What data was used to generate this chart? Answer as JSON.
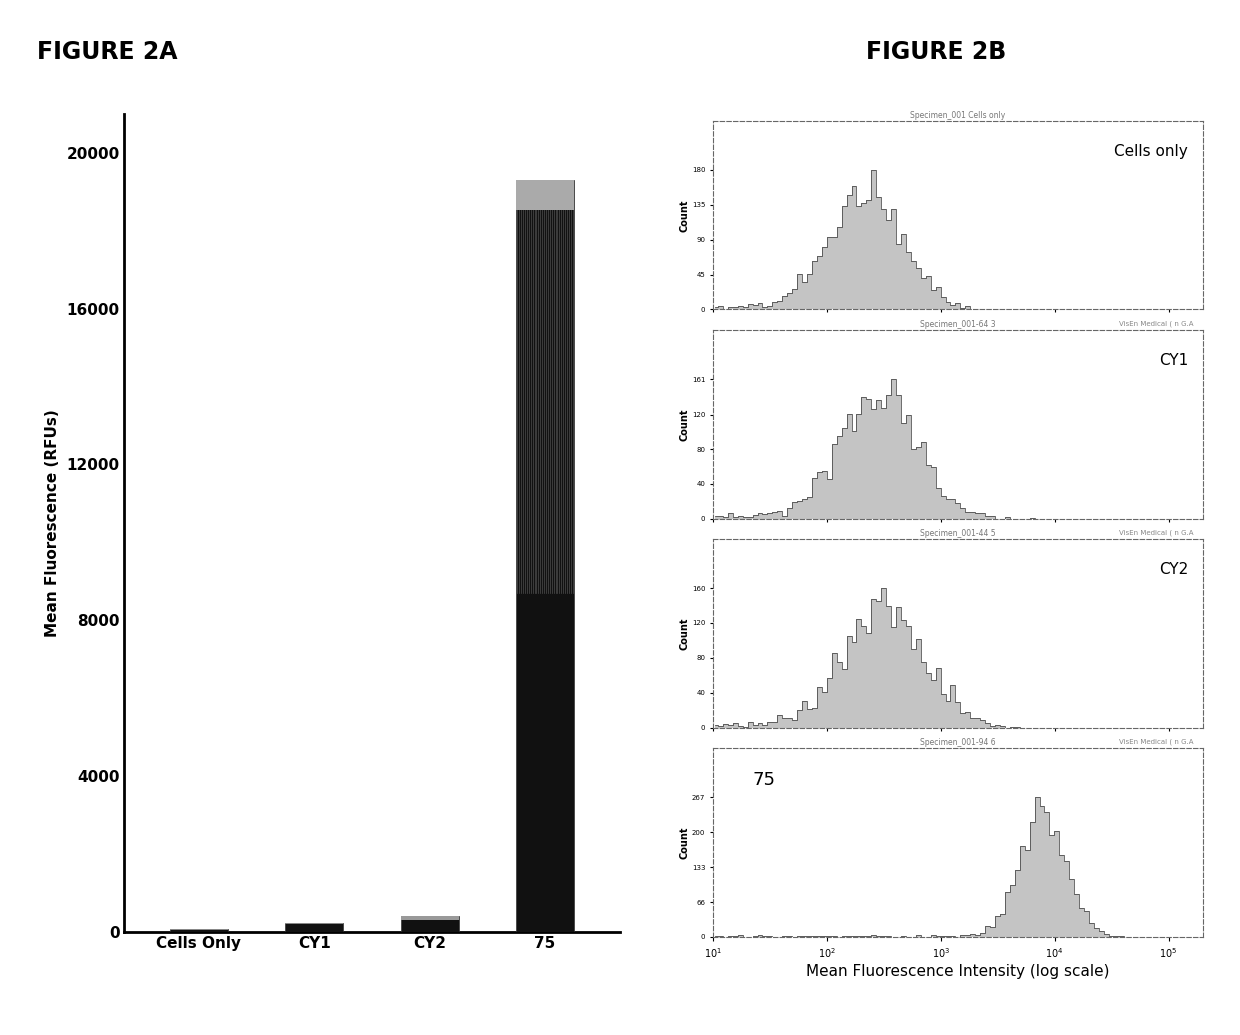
{
  "fig2a_title": "FIGURE 2A",
  "fig2b_title": "FIGURE 2B",
  "bar_categories": [
    "Cells Only",
    "CY1",
    "CY2",
    "75"
  ],
  "bar_values": [
    55,
    220,
    390,
    19300
  ],
  "ylabel": "Mean Fluorescence (RFUs)",
  "yticks": [
    0,
    4000,
    8000,
    12000,
    16000,
    20000
  ],
  "ylim": [
    0,
    21000
  ],
  "xlabel_b": "Mean Fluorescence Intensity (log scale)",
  "hist_labels": [
    "Cells only",
    "CY1",
    "CY2",
    "75"
  ],
  "hist_small_titles": [
    "Specimen_001 Cells only",
    "Specimen_001-64 3",
    "Specimen_001-44 5",
    "Specimen_001-94 6"
  ],
  "hist_footer": "VisEn Medical ( n G.A",
  "background_color": "#ffffff",
  "title_fontsize": 17,
  "bar_axis_fontsize": 11,
  "tick_fontsize": 11
}
